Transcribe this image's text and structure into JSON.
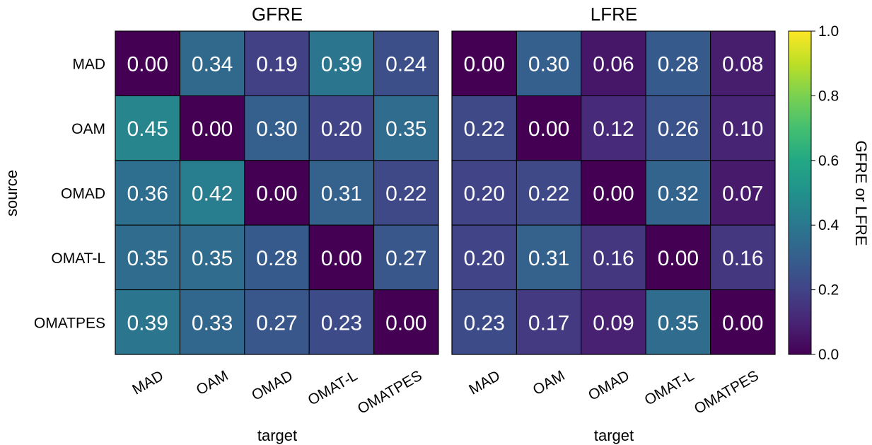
{
  "chart_data": [
    {
      "type": "heatmap",
      "title": "GFRE",
      "xlabel": "target",
      "ylabel": "source",
      "x_categories": [
        "MAD",
        "OAM",
        "OMAD",
        "OMAT-L",
        "OMATPES"
      ],
      "y_categories": [
        "MAD",
        "OAM",
        "OMAD",
        "OMAT-L",
        "OMATPES"
      ],
      "values": [
        [
          0.0,
          0.34,
          0.19,
          0.39,
          0.24
        ],
        [
          0.45,
          0.0,
          0.3,
          0.2,
          0.35
        ],
        [
          0.36,
          0.42,
          0.0,
          0.31,
          0.22
        ],
        [
          0.35,
          0.35,
          0.28,
          0.0,
          0.27
        ],
        [
          0.39,
          0.33,
          0.27,
          0.23,
          0.0
        ]
      ],
      "value_labels": [
        [
          "0.00",
          "0.34",
          "0.19",
          "0.39",
          "0.24"
        ],
        [
          "0.45",
          "0.00",
          "0.30",
          "0.20",
          "0.35"
        ],
        [
          "0.36",
          "0.42",
          "0.00",
          "0.31",
          "0.22"
        ],
        [
          "0.35",
          "0.35",
          "0.28",
          "0.00",
          "0.27"
        ],
        [
          "0.39",
          "0.33",
          "0.27",
          "0.23",
          "0.00"
        ]
      ]
    },
    {
      "type": "heatmap",
      "title": "LFRE",
      "xlabel": "target",
      "ylabel": "",
      "x_categories": [
        "MAD",
        "OAM",
        "OMAD",
        "OMAT-L",
        "OMATPES"
      ],
      "y_categories": [],
      "values": [
        [
          0.0,
          0.3,
          0.06,
          0.28,
          0.08
        ],
        [
          0.22,
          0.0,
          0.12,
          0.26,
          0.1
        ],
        [
          0.2,
          0.22,
          0.0,
          0.32,
          0.07
        ],
        [
          0.2,
          0.31,
          0.16,
          0.0,
          0.16
        ],
        [
          0.23,
          0.17,
          0.09,
          0.35,
          0.0
        ]
      ],
      "value_labels": [
        [
          "0.00",
          "0.30",
          "0.06",
          "0.28",
          "0.08"
        ],
        [
          "0.22",
          "0.00",
          "0.12",
          "0.26",
          "0.10"
        ],
        [
          "0.20",
          "0.22",
          "0.00",
          "0.32",
          "0.07"
        ],
        [
          "0.20",
          "0.31",
          "0.16",
          "0.00",
          "0.16"
        ],
        [
          "0.23",
          "0.17",
          "0.09",
          "0.35",
          "0.00"
        ]
      ]
    }
  ],
  "colorbar": {
    "label": "GFRE or LFRE",
    "range": [
      0.0,
      1.0
    ],
    "ticks": [
      0.0,
      0.2,
      0.4,
      0.6,
      0.8,
      1.0
    ],
    "tick_labels": [
      "0.0",
      "0.2",
      "0.4",
      "0.6",
      "0.8",
      "1.0"
    ],
    "colormap": "viridis"
  }
}
